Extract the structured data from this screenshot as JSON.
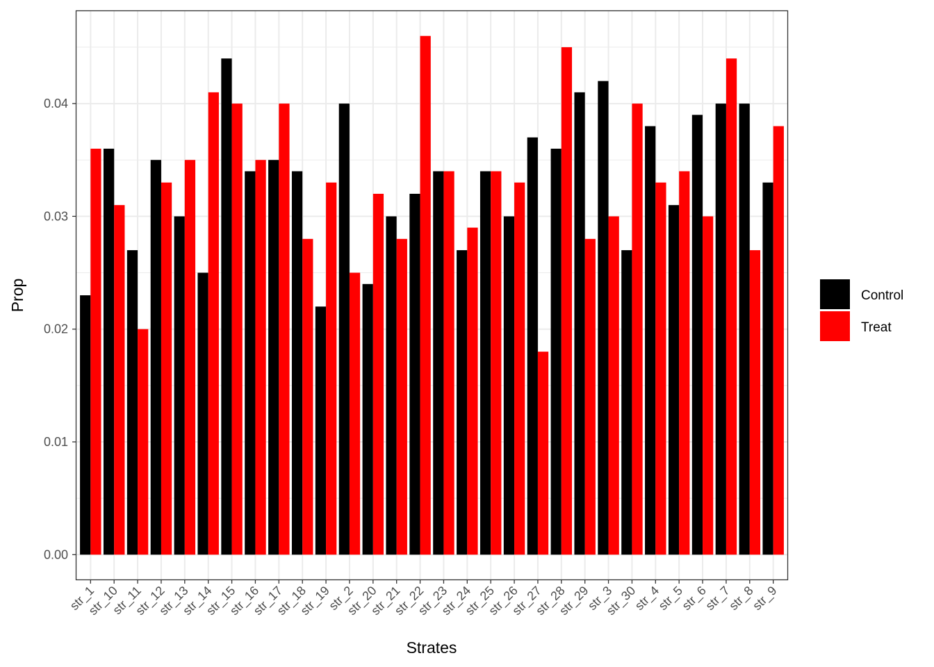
{
  "chart_data": {
    "type": "bar",
    "xlabel": "Strates",
    "ylabel": "Prop",
    "ylim": [
      -0.0022,
      0.0482
    ],
    "yticks": [
      0.0,
      0.01,
      0.02,
      0.03,
      0.04
    ],
    "ytick_labels": [
      "0.00",
      "0.01",
      "0.02",
      "0.03",
      "0.04"
    ],
    "grid": true,
    "legend_position": "right",
    "categories": [
      "str_1",
      "str_10",
      "str_11",
      "str_12",
      "str_13",
      "str_14",
      "str_15",
      "str_16",
      "str_17",
      "str_18",
      "str_19",
      "str_2",
      "str_20",
      "str_21",
      "str_22",
      "str_23",
      "str_24",
      "str_25",
      "str_26",
      "str_27",
      "str_28",
      "str_29",
      "str_3",
      "str_30",
      "str_4",
      "str_5",
      "str_6",
      "str_7",
      "str_8",
      "str_9"
    ],
    "series": [
      {
        "name": "Control",
        "color": "#000000",
        "values": [
          0.023,
          0.036,
          0.027,
          0.035,
          0.03,
          0.025,
          0.044,
          0.034,
          0.035,
          0.034,
          0.022,
          0.04,
          0.024,
          0.03,
          0.032,
          0.034,
          0.027,
          0.034,
          0.03,
          0.037,
          0.036,
          0.041,
          0.042,
          0.027,
          0.038,
          0.031,
          0.039,
          0.04,
          0.04,
          0.033
        ]
      },
      {
        "name": "Treat",
        "color": "#ff0000",
        "values": [
          0.036,
          0.031,
          0.02,
          0.033,
          0.035,
          0.041,
          0.04,
          0.035,
          0.04,
          0.028,
          0.033,
          0.025,
          0.032,
          0.028,
          0.046,
          0.034,
          0.029,
          0.034,
          0.033,
          0.018,
          0.045,
          0.028,
          0.03,
          0.04,
          0.033,
          0.034,
          0.03,
          0.044,
          0.027,
          0.038
        ]
      }
    ]
  }
}
